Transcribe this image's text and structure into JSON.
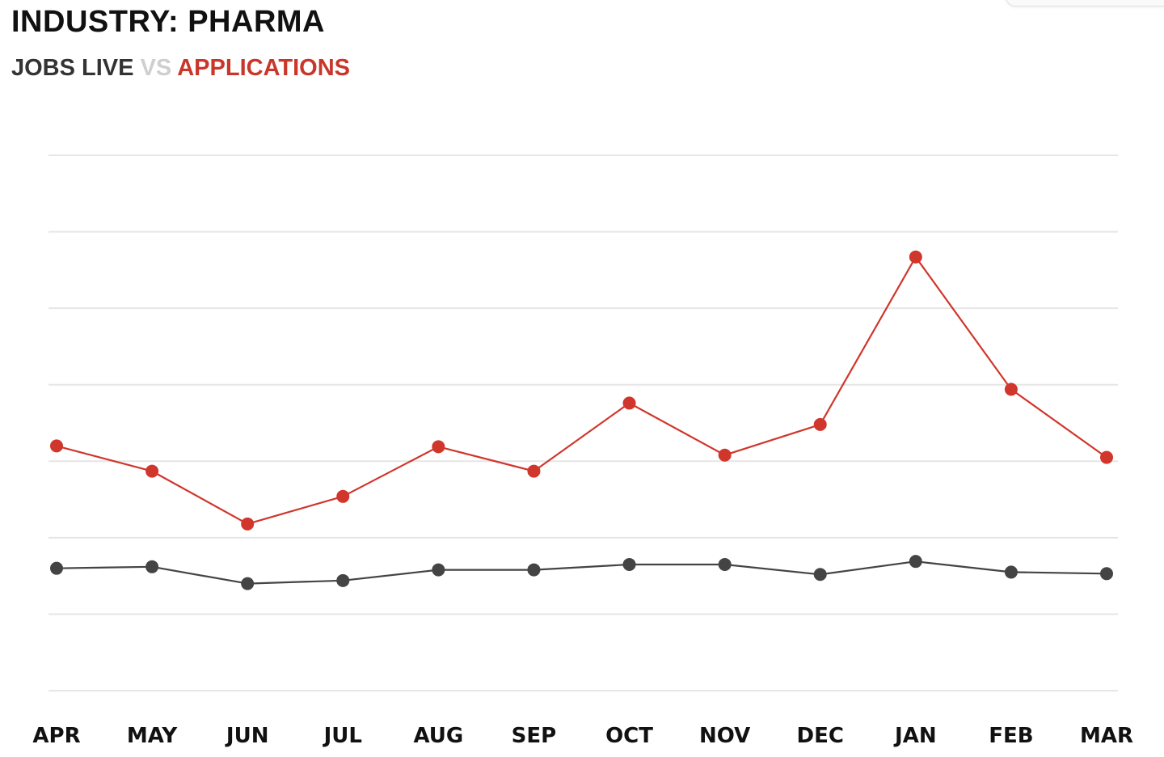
{
  "header": {
    "title": "INDUSTRY: PHARMA",
    "subtitle_a": "JOBS LIVE",
    "subtitle_vs": "VS",
    "subtitle_b": "APPLICATIONS"
  },
  "colors": {
    "series_a": "#444444",
    "series_b": "#d0362b",
    "grid": "#e6e6e6"
  },
  "chart_data": {
    "type": "line",
    "categories": [
      "APR",
      "MAY",
      "JUN",
      "JUL",
      "AUG",
      "SEP",
      "OCT",
      "NOV",
      "DEC",
      "JAN",
      "FEB",
      "MAR"
    ],
    "series": [
      {
        "name": "JOBS LIVE",
        "values": [
          1.6,
          1.62,
          1.4,
          1.44,
          1.58,
          1.58,
          1.65,
          1.65,
          1.52,
          1.69,
          1.55,
          1.53
        ]
      },
      {
        "name": "APPLICATIONS",
        "values": [
          3.2,
          2.87,
          2.18,
          2.54,
          3.19,
          2.87,
          3.76,
          3.08,
          3.48,
          5.67,
          3.94,
          3.05
        ]
      }
    ],
    "ylim": [
      0,
      7
    ],
    "grid": true,
    "gridlines": 8,
    "legend": "none"
  }
}
